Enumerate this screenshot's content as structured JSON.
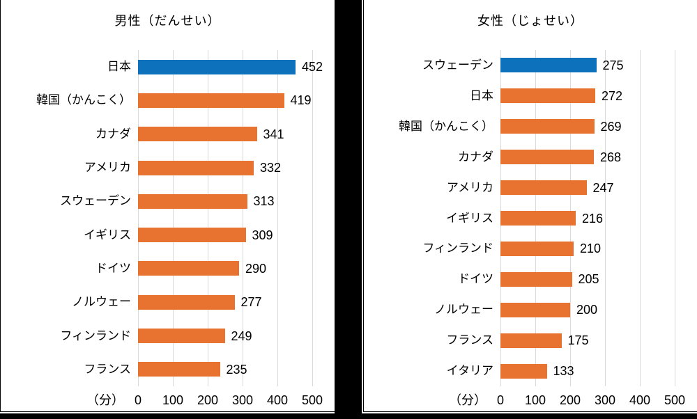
{
  "frame": {
    "background": "#ffffff",
    "divider_color": "#000000"
  },
  "chart_data": [
    {
      "type": "bar",
      "orientation": "horizontal",
      "title": "男性（だんせい）",
      "unit_label": "（分）",
      "categories": [
        "日本",
        "韓国（かんこく）",
        "カナダ",
        "アメリカ",
        "スウェーデン",
        "イギリス",
        "ドイツ",
        "ノルウェー",
        "フィンランド",
        "フランス"
      ],
      "values": [
        452,
        419,
        341,
        332,
        313,
        309,
        290,
        277,
        249,
        235
      ],
      "xlim": [
        0,
        500
      ],
      "x_ticks": [
        0,
        100,
        200,
        300,
        400,
        500
      ],
      "grid": true,
      "value_labels": true,
      "bar_color": "#e8722f",
      "highlight_color": "#0e71bc",
      "highlight_index": 0,
      "gridline_color": "#d9d9d9"
    },
    {
      "type": "bar",
      "orientation": "horizontal",
      "title": "女性（じょせい）",
      "unit_label": "（分）",
      "categories": [
        "スウェーデン",
        "日本",
        "韓国（かんこく）",
        "カナダ",
        "アメリカ",
        "イギリス",
        "フィンランド",
        "ドイツ",
        "ノルウェー",
        "フランス",
        "イタリア"
      ],
      "values": [
        275,
        272,
        269,
        268,
        247,
        216,
        210,
        205,
        200,
        175,
        133
      ],
      "xlim": [
        0,
        500
      ],
      "x_ticks": [
        0,
        100,
        200,
        300,
        400,
        500
      ],
      "grid": true,
      "value_labels": true,
      "bar_color": "#e8722f",
      "highlight_color": "#0e71bc",
      "highlight_index": 0,
      "gridline_color": "#d9d9d9"
    }
  ]
}
